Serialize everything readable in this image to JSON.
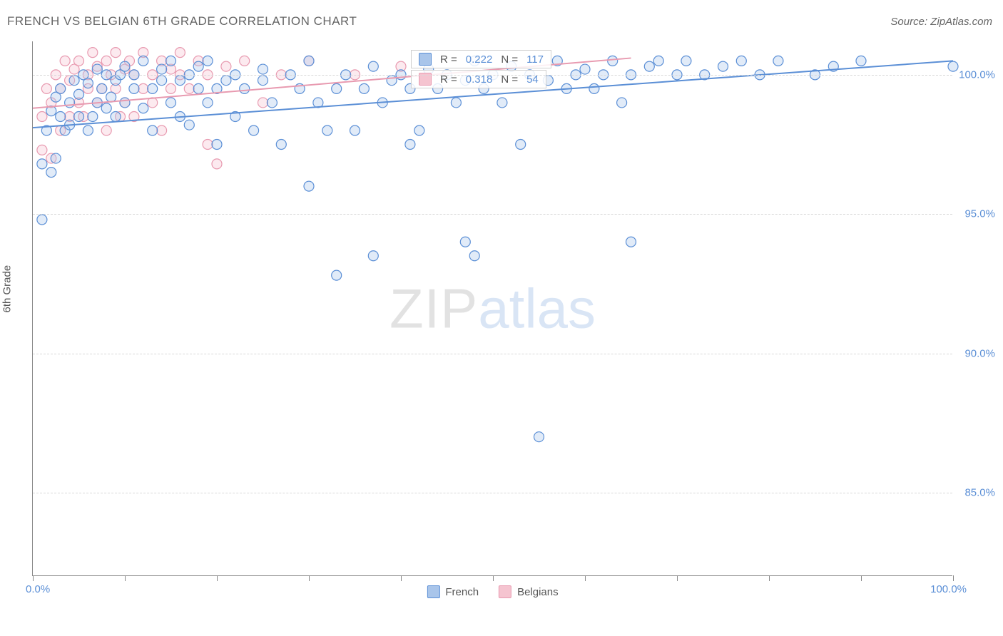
{
  "title": "FRENCH VS BELGIAN 6TH GRADE CORRELATION CHART",
  "source_label": "Source: ",
  "source_name": "ZipAtlas.com",
  "ylabel": "6th Grade",
  "watermark_part1": "ZIP",
  "watermark_part2": "atlas",
  "chart": {
    "type": "scatter",
    "xlim": [
      0,
      100
    ],
    "ylim": [
      82,
      101.2
    ],
    "x_ticks": [
      0,
      10,
      20,
      30,
      40,
      50,
      60,
      70,
      80,
      90,
      100
    ],
    "x_tick_labels": {
      "0": "0.0%",
      "100": "100.0%"
    },
    "y_gridlines": [
      85,
      90,
      95,
      100
    ],
    "y_tick_labels": {
      "85": "85.0%",
      "90": "90.0%",
      "95": "95.0%",
      "100": "100.0%"
    },
    "grid_color": "#d8d8d8",
    "axis_color": "#888888",
    "label_color": "#5b8fd6",
    "marker_radius": 7,
    "marker_fill_opacity": 0.35,
    "marker_stroke_width": 1.2,
    "line_width": 2
  },
  "series": {
    "french": {
      "label": "French",
      "color": "#5b8fd6",
      "fill": "#a9c5ea",
      "R": "0.222",
      "N": "117",
      "trend": {
        "x1": 0,
        "y1": 98.1,
        "x2": 100,
        "y2": 100.5
      },
      "points": [
        [
          1,
          96.8
        ],
        [
          1,
          94.8
        ],
        [
          1.5,
          98.0
        ],
        [
          2,
          96.5
        ],
        [
          2,
          98.7
        ],
        [
          2.5,
          99.2
        ],
        [
          2.5,
          97.0
        ],
        [
          3,
          98.5
        ],
        [
          3,
          99.5
        ],
        [
          3.5,
          98.0
        ],
        [
          4,
          99.0
        ],
        [
          4,
          98.2
        ],
        [
          4.5,
          99.8
        ],
        [
          5,
          98.5
        ],
        [
          5,
          99.3
        ],
        [
          5.5,
          100.0
        ],
        [
          6,
          98.0
        ],
        [
          6,
          99.7
        ],
        [
          6.5,
          98.5
        ],
        [
          7,
          99.0
        ],
        [
          7,
          100.2
        ],
        [
          7.5,
          99.5
        ],
        [
          8,
          98.8
        ],
        [
          8,
          100.0
        ],
        [
          8.5,
          99.2
        ],
        [
          9,
          99.8
        ],
        [
          9,
          98.5
        ],
        [
          9.5,
          100.0
        ],
        [
          10,
          99.0
        ],
        [
          10,
          100.3
        ],
        [
          11,
          99.5
        ],
        [
          11,
          100.0
        ],
        [
          12,
          98.8
        ],
        [
          12,
          100.5
        ],
        [
          13,
          99.5
        ],
        [
          13,
          98.0
        ],
        [
          14,
          99.8
        ],
        [
          14,
          100.2
        ],
        [
          15,
          99.0
        ],
        [
          15,
          100.5
        ],
        [
          16,
          98.5
        ],
        [
          16,
          99.8
        ],
        [
          17,
          100.0
        ],
        [
          17,
          98.2
        ],
        [
          18,
          99.5
        ],
        [
          18,
          100.3
        ],
        [
          19,
          99.0
        ],
        [
          19,
          100.5
        ],
        [
          20,
          99.5
        ],
        [
          20,
          97.5
        ],
        [
          21,
          99.8
        ],
        [
          22,
          100.0
        ],
        [
          22,
          98.5
        ],
        [
          23,
          99.5
        ],
        [
          24,
          98.0
        ],
        [
          25,
          99.8
        ],
        [
          25,
          100.2
        ],
        [
          26,
          99.0
        ],
        [
          27,
          97.5
        ],
        [
          28,
          100.0
        ],
        [
          29,
          99.5
        ],
        [
          30,
          96.0
        ],
        [
          30,
          100.5
        ],
        [
          31,
          99.0
        ],
        [
          32,
          98.0
        ],
        [
          33,
          99.5
        ],
        [
          33,
          92.8
        ],
        [
          34,
          100.0
        ],
        [
          35,
          98.0
        ],
        [
          36,
          99.5
        ],
        [
          37,
          100.3
        ],
        [
          37,
          93.5
        ],
        [
          38,
          99.0
        ],
        [
          39,
          99.8
        ],
        [
          40,
          100.0
        ],
        [
          41,
          97.5
        ],
        [
          41,
          99.5
        ],
        [
          42,
          98.0
        ],
        [
          43,
          100.2
        ],
        [
          44,
          99.5
        ],
        [
          45,
          100.0
        ],
        [
          46,
          99.0
        ],
        [
          47,
          94.0
        ],
        [
          47,
          99.8
        ],
        [
          48,
          100.5
        ],
        [
          48,
          93.5
        ],
        [
          49,
          99.5
        ],
        [
          50,
          100.0
        ],
        [
          51,
          99.0
        ],
        [
          52,
          100.3
        ],
        [
          53,
          97.5
        ],
        [
          54,
          100.0
        ],
        [
          55,
          87.0
        ],
        [
          56,
          99.8
        ],
        [
          57,
          100.5
        ],
        [
          58,
          99.5
        ],
        [
          59,
          100.0
        ],
        [
          60,
          100.2
        ],
        [
          61,
          99.5
        ],
        [
          62,
          100.0
        ],
        [
          63,
          100.5
        ],
        [
          64,
          99.0
        ],
        [
          65,
          94.0
        ],
        [
          65,
          100.0
        ],
        [
          67,
          100.3
        ],
        [
          68,
          100.5
        ],
        [
          70,
          100.0
        ],
        [
          71,
          100.5
        ],
        [
          73,
          100.0
        ],
        [
          75,
          100.3
        ],
        [
          77,
          100.5
        ],
        [
          79,
          100.0
        ],
        [
          81,
          100.5
        ],
        [
          85,
          100.0
        ],
        [
          87,
          100.3
        ],
        [
          90,
          100.5
        ],
        [
          100,
          100.3
        ]
      ]
    },
    "belgians": {
      "label": "Belgians",
      "color": "#e89ab0",
      "fill": "#f5c4d0",
      "R": "0.318",
      "N": "54",
      "trend": {
        "x1": 0,
        "y1": 98.8,
        "x2": 65,
        "y2": 100.6
      },
      "points": [
        [
          1,
          97.3
        ],
        [
          1,
          98.5
        ],
        [
          1.5,
          99.5
        ],
        [
          2,
          97.0
        ],
        [
          2,
          99.0
        ],
        [
          2.5,
          100.0
        ],
        [
          3,
          98.0
        ],
        [
          3,
          99.5
        ],
        [
          3.5,
          100.5
        ],
        [
          4,
          98.5
        ],
        [
          4,
          99.8
        ],
        [
          4.5,
          100.2
        ],
        [
          5,
          99.0
        ],
        [
          5,
          100.5
        ],
        [
          5.5,
          98.5
        ],
        [
          6,
          100.0
        ],
        [
          6,
          99.5
        ],
        [
          6.5,
          100.8
        ],
        [
          7,
          99.0
        ],
        [
          7,
          100.3
        ],
        [
          7.5,
          99.5
        ],
        [
          8,
          100.5
        ],
        [
          8,
          98.0
        ],
        [
          8.5,
          100.0
        ],
        [
          9,
          99.5
        ],
        [
          9,
          100.8
        ],
        [
          9.5,
          98.5
        ],
        [
          10,
          100.2
        ],
        [
          10,
          99.0
        ],
        [
          10.5,
          100.5
        ],
        [
          11,
          98.5
        ],
        [
          11,
          100.0
        ],
        [
          12,
          99.5
        ],
        [
          12,
          100.8
        ],
        [
          13,
          100.0
        ],
        [
          13,
          99.0
        ],
        [
          14,
          100.5
        ],
        [
          14,
          98.0
        ],
        [
          15,
          100.2
        ],
        [
          15,
          99.5
        ],
        [
          16,
          100.8
        ],
        [
          16,
          100.0
        ],
        [
          17,
          99.5
        ],
        [
          18,
          100.5
        ],
        [
          19,
          97.5
        ],
        [
          19,
          100.0
        ],
        [
          20,
          96.8
        ],
        [
          21,
          100.3
        ],
        [
          23,
          100.5
        ],
        [
          25,
          99.0
        ],
        [
          27,
          100.0
        ],
        [
          30,
          100.5
        ],
        [
          35,
          100.0
        ],
        [
          40,
          100.3
        ]
      ]
    }
  },
  "legend_labels": {
    "R": "R =",
    "N": "N ="
  }
}
